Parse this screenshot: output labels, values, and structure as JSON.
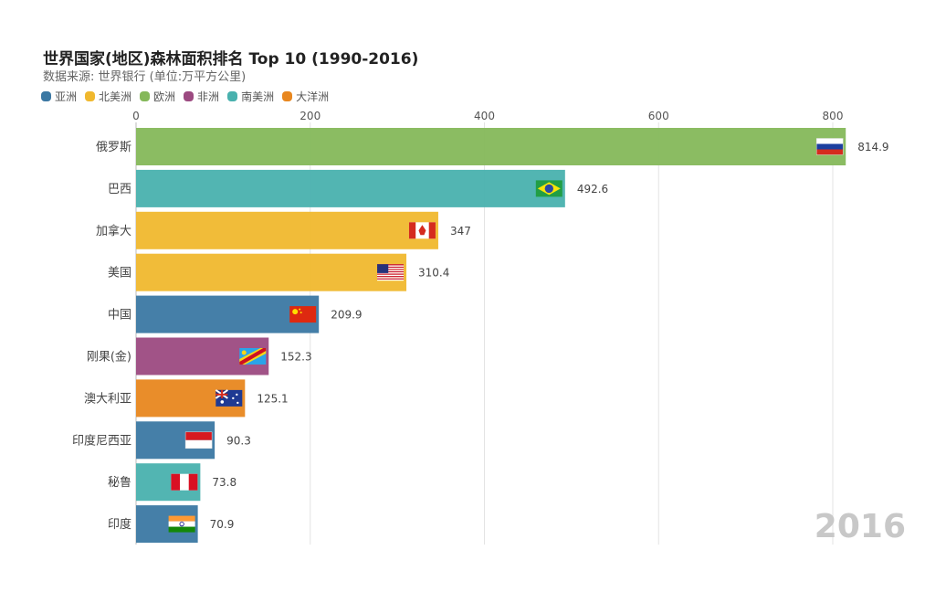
{
  "chart_data": {
    "type": "bar",
    "orientation": "horizontal",
    "title": "世界国家(地区)森林面积排名 Top 10 (1990-2016)",
    "subtitle": "数据来源: 世界银行 (单位:万平方公里)",
    "year": "2016",
    "xlim": [
      0,
      815
    ],
    "x_ticks": [
      0,
      200,
      400,
      600,
      800
    ],
    "grid": true,
    "legend_position": "top-left",
    "legend": [
      {
        "name": "亚洲",
        "color": "#3b78a3"
      },
      {
        "name": "北美洲",
        "color": "#f0b82e"
      },
      {
        "name": "欧洲",
        "color": "#85b85a"
      },
      {
        "name": "非洲",
        "color": "#9c4a81"
      },
      {
        "name": "南美洲",
        "color": "#49b1ae"
      },
      {
        "name": "大洋洲",
        "color": "#e8871f"
      }
    ],
    "categories": [
      "俄罗斯",
      "巴西",
      "加拿大",
      "美国",
      "中国",
      "刚果(金)",
      "澳大利亚",
      "印度尼西亚",
      "秘鲁",
      "印度"
    ],
    "values": [
      814.9,
      492.6,
      347,
      310.4,
      209.9,
      152.3,
      125.1,
      90.3,
      73.8,
      70.9
    ],
    "value_labels": [
      "814.9",
      "492.6",
      "347",
      "310.4",
      "209.9",
      "152.3",
      "125.1",
      "90.3",
      "73.8",
      "70.9"
    ],
    "regions": [
      "欧洲",
      "南美洲",
      "北美洲",
      "北美洲",
      "亚洲",
      "非洲",
      "大洋洲",
      "亚洲",
      "南美洲",
      "亚洲"
    ],
    "flags": [
      "russia-flag",
      "brazil-flag",
      "canada-flag",
      "usa-flag",
      "china-flag",
      "drc-flag",
      "australia-flag",
      "indonesia-flag",
      "peru-flag",
      "india-flag"
    ]
  }
}
